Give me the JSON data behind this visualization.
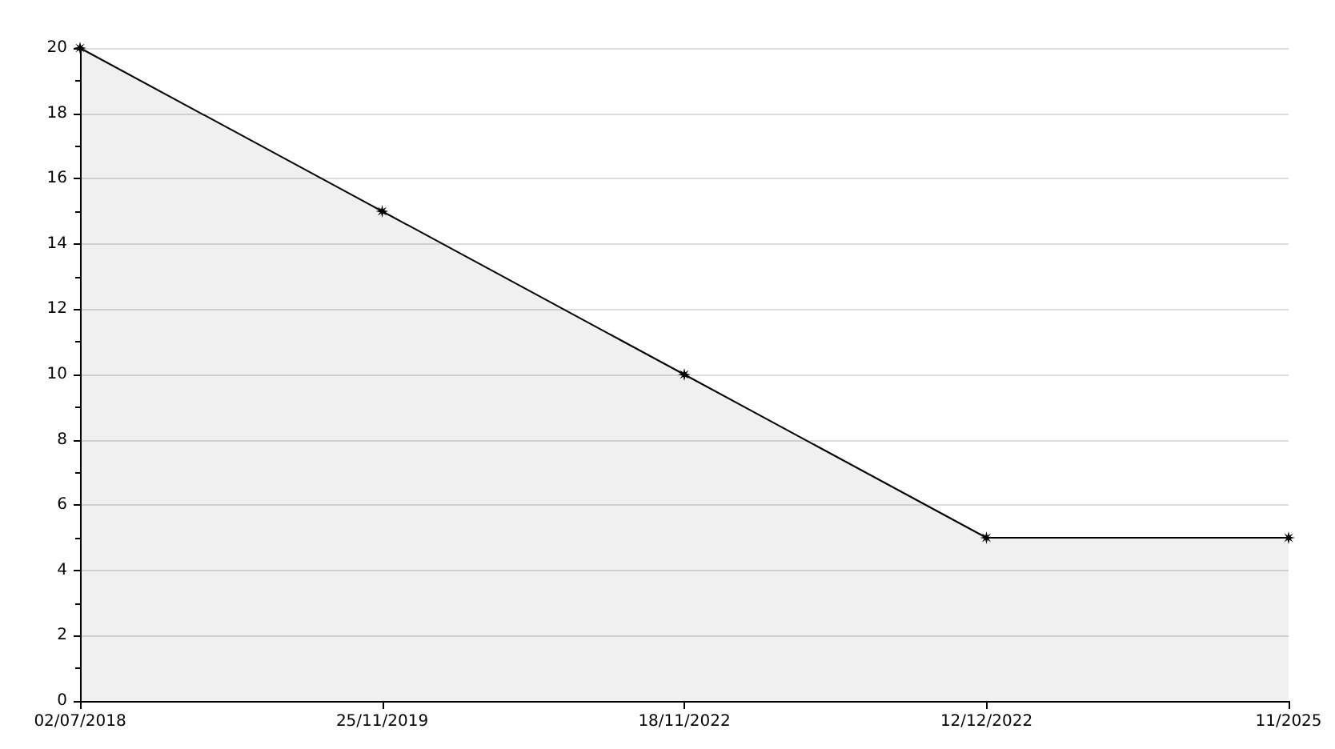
{
  "chart_data": {
    "type": "area",
    "categories": [
      "02/07/2018",
      "25/11/2019",
      "18/11/2022",
      "12/12/2022",
      "11/2025"
    ],
    "series": [
      {
        "color": "#000000",
        "values": [
          20,
          15,
          10,
          5,
          5
        ]
      }
    ],
    "ylim": [
      0,
      20
    ],
    "yticks": [
      0,
      2,
      4,
      6,
      8,
      10,
      12,
      14,
      16,
      18,
      20
    ],
    "grid": "y",
    "marker": "star",
    "line_style": "solid"
  }
}
